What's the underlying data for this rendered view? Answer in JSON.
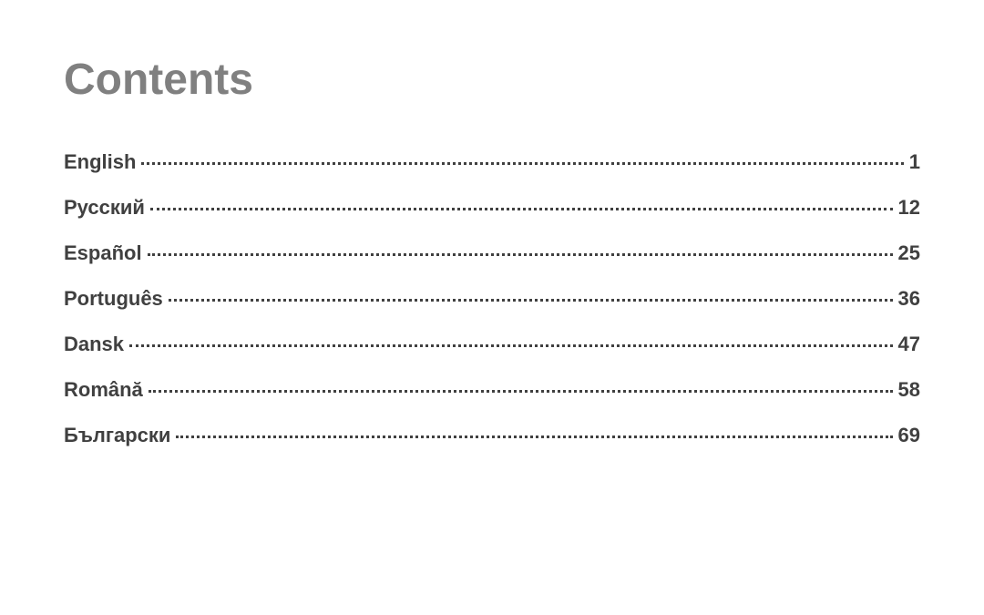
{
  "title": "Contents",
  "title_color": "#808080",
  "title_fontsize": 48,
  "text_color": "#404040",
  "entry_fontsize": 22,
  "background_color": "#ffffff",
  "leader_style": "dotted",
  "entries": [
    {
      "label": "English",
      "page": "1"
    },
    {
      "label": "Русский",
      "page": "12"
    },
    {
      "label": "Español",
      "page": "25"
    },
    {
      "label": "Português",
      "page": "36"
    },
    {
      "label": "Dansk",
      "page": "47"
    },
    {
      "label": "Română",
      "page": "58"
    },
    {
      "label": "Български",
      "page": "69"
    }
  ]
}
